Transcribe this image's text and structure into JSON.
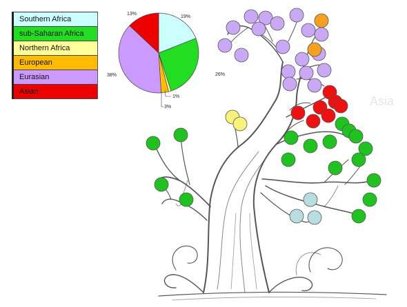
{
  "colors": {
    "southern_africa": "#ccffff",
    "sub_saharan_africa": "#22dd22",
    "northern_africa": "#ffff99",
    "european": "#ffbb00",
    "eurasian": "#cc99ff",
    "asian": "#ee0000",
    "tree_ink": "#555555",
    "cluster_light_blue": "#b8dde0",
    "cluster_yellow": "#f6f27a",
    "cluster_orange": "#f5a020",
    "cluster_purple": "#c9a8f5",
    "cluster_red": "#ee1111",
    "cluster_green": "#1fc21f"
  },
  "legend": {
    "items": [
      {
        "label": "Southern Africa",
        "color": "#ccffff"
      },
      {
        "label": "sub-Saharan Africa",
        "color": "#22dd22"
      },
      {
        "label": "Northern Africa",
        "color": "#ffff99"
      },
      {
        "label": "European",
        "color": "#ffbb00"
      },
      {
        "label": "Eurasian",
        "color": "#cc99ff"
      },
      {
        "label": "Asian",
        "color": "#ee0000"
      }
    ]
  },
  "pie": {
    "slices": [
      {
        "label": "Southern Africa",
        "value": 19,
        "color": "#ccffff",
        "text": "19%"
      },
      {
        "label": "sub-Saharan Africa",
        "value": 26,
        "color": "#22dd22",
        "text": "26%"
      },
      {
        "label": "Northern Africa",
        "value": 1,
        "color": "#ffff99",
        "text": "1%"
      },
      {
        "label": "European",
        "value": 3,
        "color": "#ffbb00",
        "text": "3%"
      },
      {
        "label": "Eurasian",
        "value": 38,
        "color": "#cc99ff",
        "text": "38%"
      },
      {
        "label": "Asian",
        "value": 13,
        "color": "#ee0000",
        "text": "13%"
      }
    ]
  },
  "watermark": "Asia"
}
